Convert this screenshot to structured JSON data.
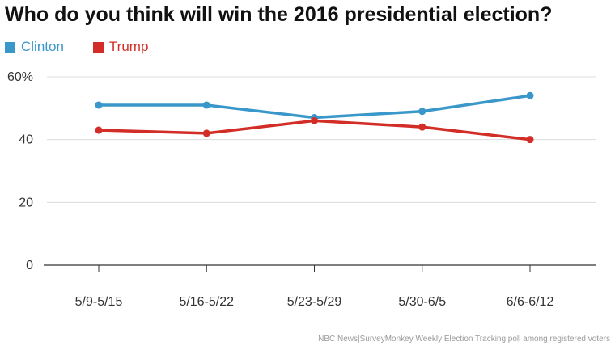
{
  "chart_data": {
    "type": "line",
    "title": "Who do you think will win the 2016 presidential election?",
    "categories": [
      "5/9-5/15",
      "5/16-5/22",
      "5/23-5/29",
      "5/30-6/5",
      "6/6-6/12"
    ],
    "series": [
      {
        "name": "Clinton",
        "color": "#3a97c9",
        "values": [
          51,
          51,
          47,
          49,
          54
        ]
      },
      {
        "name": "Trump",
        "color": "#d22d26",
        "values": [
          43,
          42,
          46,
          44,
          40
        ]
      }
    ],
    "yticks": [
      "60%",
      "40",
      "20",
      "0"
    ],
    "ylim": [
      0,
      60
    ],
    "grid": true,
    "legend": "top-left",
    "source": "NBC News|SurveyMonkey Weekly Election Tracking poll among registered voters"
  }
}
